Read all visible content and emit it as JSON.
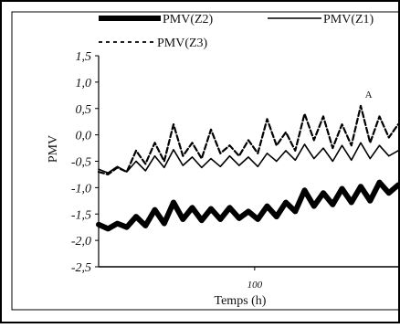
{
  "chart_data": {
    "type": "line",
    "title": "",
    "xlabel": "Temps (h)",
    "ylabel": "PMV",
    "ylim": [
      -2.5,
      1.5
    ],
    "yticks": [
      "1,5",
      "1,0",
      "0,5",
      "0,0",
      "-0,5",
      "-1,0",
      "-1,5",
      "-2,0",
      "-2,5"
    ],
    "yticks_values": [
      1.5,
      1.0,
      0.5,
      0.0,
      -0.5,
      -1.0,
      -1.5,
      -2.0,
      -2.5
    ],
    "xlim": [
      0,
      192
    ],
    "xticks": [
      "100"
    ],
    "xticks_values": [
      100
    ],
    "grid": false,
    "legend_position": "top",
    "legend": [
      {
        "label": "PMV(Z2)",
        "style": "thick-solid"
      },
      {
        "label": "PMV(Z1)",
        "style": "thin-solid"
      },
      {
        "label": "PMV(Z3)",
        "style": "dashed"
      }
    ],
    "annotations": [
      {
        "text": "A",
        "x": 173,
        "y": 0.7
      }
    ],
    "series": [
      {
        "name": "PMV(Z2)",
        "color": "#000000",
        "x": [
          0,
          6,
          12,
          18,
          24,
          30,
          36,
          42,
          48,
          54,
          60,
          66,
          72,
          78,
          84,
          90,
          96,
          102,
          108,
          114,
          120,
          126,
          132,
          138,
          144,
          150,
          156,
          162,
          168,
          174,
          180,
          186,
          192
        ],
        "values": [
          -1.7,
          -1.78,
          -1.68,
          -1.75,
          -1.55,
          -1.72,
          -1.42,
          -1.68,
          -1.28,
          -1.6,
          -1.38,
          -1.62,
          -1.4,
          -1.6,
          -1.38,
          -1.58,
          -1.45,
          -1.6,
          -1.35,
          -1.55,
          -1.28,
          -1.45,
          -1.05,
          -1.35,
          -1.1,
          -1.32,
          -1.02,
          -1.28,
          -0.98,
          -1.25,
          -0.9,
          -1.1,
          -0.95
        ]
      },
      {
        "name": "PMV(Z1)",
        "color": "#000000",
        "x": [
          0,
          6,
          12,
          18,
          24,
          30,
          36,
          42,
          48,
          54,
          60,
          66,
          72,
          78,
          84,
          90,
          96,
          102,
          108,
          114,
          120,
          126,
          132,
          138,
          144,
          150,
          156,
          162,
          168,
          174,
          180,
          186,
          192
        ],
        "values": [
          -0.65,
          -0.72,
          -0.6,
          -0.7,
          -0.5,
          -0.68,
          -0.4,
          -0.62,
          -0.28,
          -0.58,
          -0.42,
          -0.62,
          -0.45,
          -0.6,
          -0.4,
          -0.58,
          -0.42,
          -0.6,
          -0.35,
          -0.5,
          -0.3,
          -0.48,
          -0.18,
          -0.45,
          -0.25,
          -0.5,
          -0.2,
          -0.48,
          -0.15,
          -0.45,
          -0.2,
          -0.4,
          -0.3
        ]
      },
      {
        "name": "PMV(Z3)",
        "color": "#000000",
        "x": [
          0,
          6,
          12,
          18,
          24,
          30,
          36,
          42,
          48,
          54,
          60,
          66,
          72,
          78,
          84,
          90,
          96,
          102,
          108,
          114,
          120,
          126,
          132,
          138,
          144,
          150,
          156,
          162,
          168,
          174,
          180,
          186,
          192
        ],
        "values": [
          -0.7,
          -0.75,
          -0.62,
          -0.7,
          -0.3,
          -0.55,
          -0.15,
          -0.5,
          0.2,
          -0.4,
          -0.15,
          -0.45,
          0.1,
          -0.35,
          -0.2,
          -0.4,
          -0.1,
          -0.35,
          0.3,
          -0.2,
          0.05,
          -0.3,
          0.4,
          -0.1,
          0.35,
          -0.25,
          0.2,
          -0.2,
          0.55,
          -0.15,
          0.35,
          -0.05,
          0.2
        ]
      }
    ]
  }
}
